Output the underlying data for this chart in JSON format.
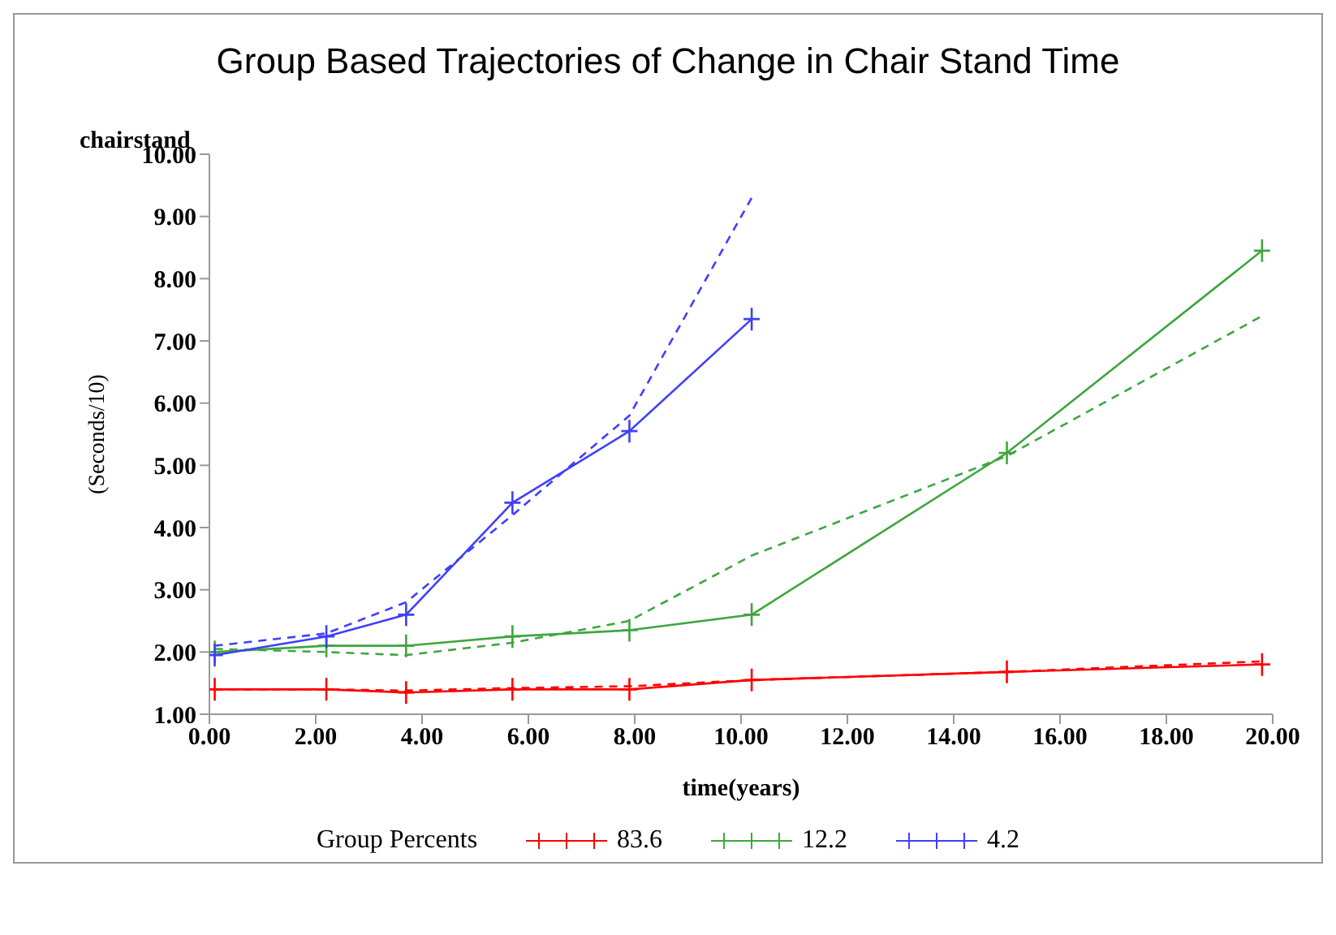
{
  "chart_data": {
    "type": "line",
    "title": "Group Based Trajectories of Change in Chair Stand Time",
    "xlabel": "time(years)",
    "ylabel": "(Seconds/10)",
    "annotations": [
      "chairstand"
    ],
    "legend_title": "Group Percents",
    "legend": "bottom",
    "grid": false,
    "xlim": [
      0,
      20
    ],
    "xticks": [
      {
        "value": 0,
        "label": "0.00"
      },
      {
        "value": 2,
        "label": "2.00"
      },
      {
        "value": 4,
        "label": "4.00"
      },
      {
        "value": 6,
        "label": "6.00"
      },
      {
        "value": 8,
        "label": "8.00"
      },
      {
        "value": 10,
        "label": "10.00"
      },
      {
        "value": 12,
        "label": "12.00"
      },
      {
        "value": 14,
        "label": "14.00"
      },
      {
        "value": 16,
        "label": "16.00"
      },
      {
        "value": 18,
        "label": "18.00"
      },
      {
        "value": 20,
        "label": "20.00"
      }
    ],
    "ylim": [
      1,
      10
    ],
    "yticks": [
      {
        "value": 1,
        "label": "1.00"
      },
      {
        "value": 2,
        "label": "2.00"
      },
      {
        "value": 3,
        "label": "3.00"
      },
      {
        "value": 4,
        "label": "4.00"
      },
      {
        "value": 5,
        "label": "5.00"
      },
      {
        "value": 6,
        "label": "6.00"
      },
      {
        "value": 7,
        "label": "7.00"
      },
      {
        "value": 8,
        "label": "8.00"
      },
      {
        "value": 9,
        "label": "9.00"
      },
      {
        "value": 10,
        "label": "10.00"
      }
    ],
    "series": [
      {
        "name": "83.6",
        "color": "#ff0000",
        "marker": "cross",
        "line_style": "solid",
        "x": [
          0.1,
          2.2,
          3.7,
          5.7,
          7.9,
          10.2,
          15,
          19.8
        ],
        "values": [
          1.4,
          1.4,
          1.35,
          1.4,
          1.4,
          1.55,
          1.68,
          1.8
        ]
      },
      {
        "color": "#ff0000",
        "marker": "none",
        "line_style": "dashed",
        "x": [
          0.1,
          2.2,
          3.7,
          5.7,
          7.9,
          10.2,
          15,
          19.8
        ],
        "values": [
          1.4,
          1.4,
          1.38,
          1.42,
          1.45,
          1.55,
          1.68,
          1.85
        ]
      },
      {
        "name": "12.2",
        "color": "#3fa63f",
        "marker": "cross",
        "line_style": "solid",
        "x": [
          0.1,
          2.2,
          3.7,
          5.7,
          7.9,
          10.2,
          15,
          19.8
        ],
        "values": [
          2.0,
          2.1,
          2.1,
          2.25,
          2.35,
          2.6,
          5.2,
          8.45
        ]
      },
      {
        "color": "#3fa63f",
        "marker": "none",
        "line_style": "dashed",
        "x": [
          0.1,
          2.2,
          3.7,
          5.7,
          7.9,
          10.2,
          15,
          19.8
        ],
        "values": [
          2.05,
          2.0,
          1.95,
          2.15,
          2.5,
          3.55,
          5.15,
          7.4
        ]
      },
      {
        "name": "4.2",
        "color": "#3f3fff",
        "marker": "cross",
        "line_style": "solid",
        "x": [
          0.1,
          2.2,
          3.7,
          5.7,
          7.9,
          10.2
        ],
        "values": [
          1.95,
          2.25,
          2.6,
          4.4,
          5.55,
          7.35
        ]
      },
      {
        "color": "#3f3fff",
        "marker": "none",
        "line_style": "dashed",
        "x": [
          0.1,
          2.2,
          3.7,
          5.7,
          7.9,
          10.2
        ],
        "values": [
          2.1,
          2.3,
          2.8,
          4.2,
          5.8,
          9.3
        ]
      }
    ]
  }
}
